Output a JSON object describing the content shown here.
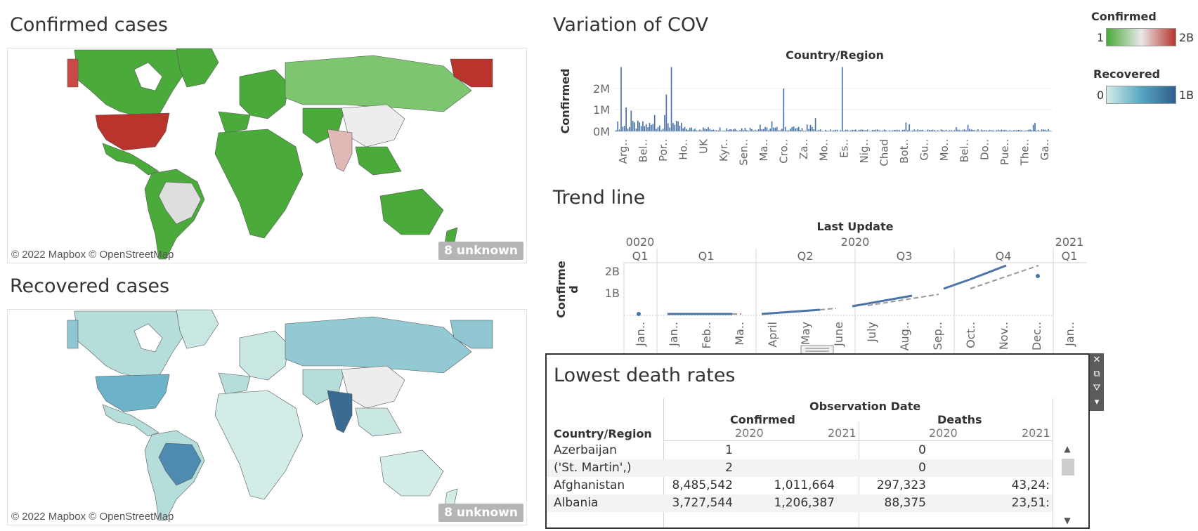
{
  "confirmed_map": {
    "title": "Confirmed cases",
    "attribution": "© 2022 Mapbox © OpenStreetMap",
    "unknown_badge": "8 unknown"
  },
  "recovered_map": {
    "title": "Recovered cases",
    "attribution": "© 2022 Mapbox © OpenStreetMap",
    "unknown_badge": "8 unknown"
  },
  "legends": {
    "confirmed": {
      "title": "Confirmed",
      "min": "1",
      "max": "2B",
      "colors": [
        "#4aab3b",
        "#e8e8e8",
        "#b8342d"
      ]
    },
    "recovered": {
      "title": "Recovered",
      "min": "0",
      "max": "1B",
      "colors": [
        "#d2ece7",
        "#58a6c2",
        "#2e5e8c"
      ]
    }
  },
  "variation_chart": {
    "title": "Variation of COV",
    "chart_data": {
      "type": "bar",
      "header": "Country/Region",
      "ylabel": "Confirmed",
      "y_ticks": [
        "2M",
        "1M",
        "0M"
      ],
      "x_ticks": [
        "Arg..",
        "Bel..",
        "Por..",
        "Ho..",
        "UK",
        "Kyr..",
        "Sen..",
        "Ma..",
        "Cro..",
        "Za..",
        "Mo..",
        "Es..",
        "Nig..",
        "Chad",
        "Bot..",
        "Gu..",
        "Mo..",
        "Bel..",
        "Do..",
        "Pue..",
        "The..",
        "Ga.."
      ],
      "color": "#4a74a8",
      "peak_values_m": [
        3.0,
        3.0,
        2.0,
        3.0,
        0.3
      ]
    }
  },
  "trend_chart": {
    "title": "Trend line",
    "chart_data": {
      "type": "line",
      "header": "Last Update",
      "ylabel": "Confirme\nd",
      "y_ticks": [
        "2B",
        "1B"
      ],
      "top_years": [
        "0020",
        "2020",
        "2021"
      ],
      "quarters": [
        "Q1",
        "Q1",
        "Q2",
        "Q3",
        "Q4",
        "Q1"
      ],
      "months": [
        "Jan..",
        "Jan..",
        "Feb..",
        "Ma..",
        "April",
        "May",
        "June",
        "July",
        "Aug..",
        "Sep..",
        "Oct..",
        "Nov..",
        "Dec..",
        "Jan.."
      ],
      "series_color": "#4a74a8",
      "trend_color": "#999999"
    }
  },
  "lowest_death_rates": {
    "title": "Lowest death rates",
    "header_top": "Observation Date",
    "row_header": "Country/Region",
    "measure_headers": [
      "Confirmed",
      "Deaths"
    ],
    "years": [
      "2020",
      "2021",
      "2020",
      "2021"
    ],
    "rows": [
      {
        "country": " Azerbaijan",
        "c2020": "1",
        "c2021": "",
        "d2020": "0",
        "d2021": ""
      },
      {
        "country": "('St. Martin',)",
        "c2020": "2",
        "c2021": "",
        "d2020": "0",
        "d2021": ""
      },
      {
        "country": "Afghanistan",
        "c2020": "8,485,542",
        "c2021": "1,011,664",
        "d2020": "297,323",
        "d2021": "43,24:"
      },
      {
        "country": "Albania",
        "c2020": "3,727,544",
        "c2021": "1,206,387",
        "d2020": "88,375",
        "d2021": "23,51:"
      }
    ]
  },
  "toolbar": {
    "close": "✕",
    "popout": "⧉",
    "filter": "⛛",
    "more": "▾"
  }
}
